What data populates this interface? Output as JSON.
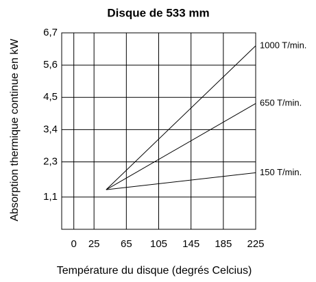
{
  "chart_data": {
    "type": "line",
    "title": "Disque de 533 mm",
    "xlabel": "Température du disque (degrés Celcius)",
    "ylabel": "Absorption thermique continue en kW",
    "x": [
      40,
      225
    ],
    "series": [
      {
        "name": "1000 T/min.",
        "color": "#000000",
        "values": [
          1.35,
          6.26
        ]
      },
      {
        "name": "650 T/min.",
        "color": "#000000",
        "values": [
          1.35,
          4.29
        ]
      },
      {
        "name": "150 T/min.",
        "color": "#000000",
        "values": [
          1.35,
          1.93
        ]
      }
    ],
    "xlim": [
      -15,
      225
    ],
    "xticks": [
      0,
      25,
      65,
      105,
      145,
      185,
      225
    ],
    "ylim": [
      0,
      6.7
    ],
    "yticks": [
      {
        "value": 1.1,
        "label": "1,1"
      },
      {
        "value": 2.3,
        "label": "2,3"
      },
      {
        "value": 3.4,
        "label": "3,4"
      },
      {
        "value": 4.5,
        "label": "4,5"
      },
      {
        "value": 5.6,
        "label": "5,6"
      },
      {
        "value": 6.7,
        "label": "6,7"
      }
    ],
    "grid": true
  }
}
